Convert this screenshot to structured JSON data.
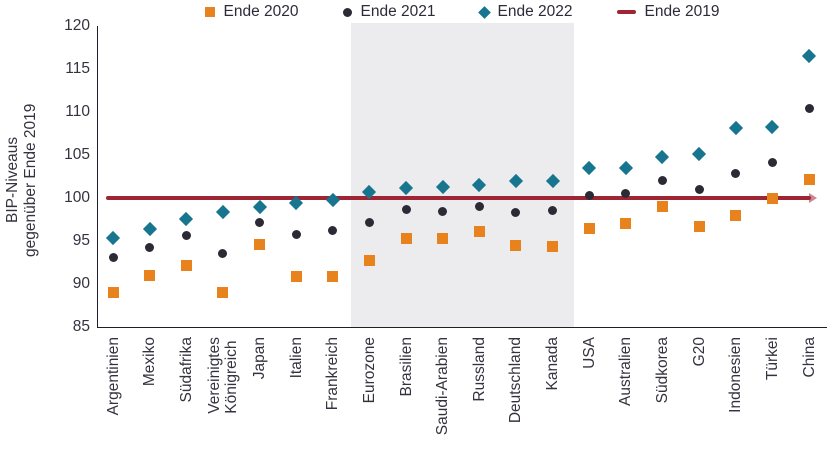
{
  "accent_colors": {
    "ende2020_orange": "#E8821D",
    "ende2021_dark": "#2B2A35",
    "ende2022_teal": "#17758F",
    "ende2019_red": "#9E2533",
    "highlight_band_gray": "#ECECEF"
  },
  "legend": {
    "items": [
      {
        "label": "Ende 2020",
        "marker": "square-icon",
        "color": "#E8821D"
      },
      {
        "label": "Ende 2021",
        "marker": "circle-icon",
        "color": "#2B2A35"
      },
      {
        "label": "Ende 2022",
        "marker": "diamond-icon",
        "color": "#17758F"
      },
      {
        "label": "Ende 2019",
        "marker": "line-icon",
        "color": "#9E2533"
      }
    ]
  },
  "chart_data": {
    "type": "scatter",
    "title": "",
    "xlabel": "",
    "ylabel": "BIP-Niveaus\ngegenüber Ende 2019",
    "ylim": [
      85,
      120
    ],
    "yticks": [
      85,
      90,
      95,
      100,
      105,
      110,
      115,
      120
    ],
    "grid": false,
    "legend_position": "top",
    "baseline": {
      "name": "Ende 2019",
      "value": 100,
      "color": "#9E2533"
    },
    "highlight_band": {
      "from": "Eurozone",
      "to": "Kanada",
      "color": "#ECECEF"
    },
    "categories": [
      "Argentinien",
      "Mexiko",
      "Südafrika",
      "Vereinigtes\nKönigreich",
      "Japan",
      "Italien",
      "Frankreich",
      "Eurozone",
      "Brasilien",
      "Saudi-Arabien",
      "Russland",
      "Deutschland",
      "Kanada",
      "USA",
      "Australien",
      "Südkorea",
      "G20",
      "Indonesien",
      "Türkei",
      "China"
    ],
    "series": [
      {
        "name": "Ende 2020",
        "marker": "square",
        "color": "#E8821D",
        "values": [
          89,
          91,
          92.1,
          89,
          94.6,
          90.9,
          90.9,
          92.7,
          95.3,
          95.3,
          96.1,
          94.5,
          94.4,
          96.5,
          97,
          99,
          96.7,
          98,
          100,
          102.1
        ]
      },
      {
        "name": "Ende 2021",
        "marker": "circle",
        "color": "#2B2A35",
        "values": [
          93.1,
          94.2,
          95.6,
          93.5,
          97.2,
          95.8,
          96.2,
          97.1,
          98.7,
          98.4,
          99,
          98.3,
          98.5,
          100.3,
          100.5,
          102,
          101,
          102.8,
          104.1,
          110.4
        ]
      },
      {
        "name": "Ende 2022",
        "marker": "diamond",
        "color": "#17758F",
        "values": [
          95.4,
          96.4,
          97.6,
          98.4,
          99,
          99.4,
          99.8,
          100.7,
          101.2,
          101.3,
          101.5,
          102,
          102,
          103.5,
          103.5,
          104.8,
          105.1,
          108.1,
          108.3,
          116.5
        ]
      }
    ]
  }
}
